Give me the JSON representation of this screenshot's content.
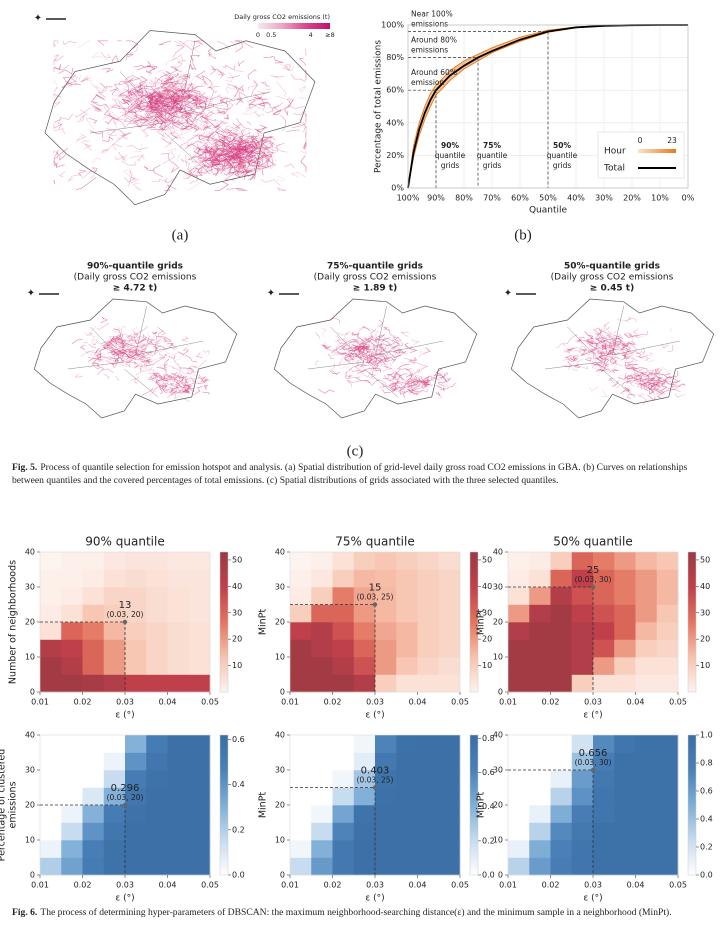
{
  "map_a": {
    "label": "(a)",
    "legend": {
      "title": "Daily gross CO2 emissions (t)",
      "ticks": [
        0,
        0.5,
        4,
        {
          "value": 8,
          "label": "≥8"
        }
      ],
      "colors": [
        "#f6e8ef",
        "#eba6c6",
        "#d8468a",
        "#c0116a"
      ]
    }
  },
  "maps_c": {
    "label": "(c)",
    "maps": [
      {
        "title": [
          "90%-quantile grids",
          "(Daily gross CO2 emissions",
          "≥ 4.72 t)"
        ]
      },
      {
        "title": [
          "75%-quantile grids",
          "(Daily gross CO2 emissions",
          "≥ 1.89 t)"
        ]
      },
      {
        "title": [
          "50%-quantile grids",
          "(Daily gross CO2 emissions",
          "≥ 0.45 t)"
        ]
      }
    ]
  },
  "caption_fig5": {
    "label": "Fig. 5.",
    "text": "Process of quantile selection for emission hotspot and analysis. (a) Spatial distribution of grid-level daily gross road CO2 emissions in GBA. (b) Curves on relationships between quantiles and the covered percentages of total emissions. (c) Spatial distributions of grids associated with the three selected quantiles."
  },
  "caption_fig6": {
    "label": "Fig. 6.",
    "text": "The process of determining hyper-parameters of DBSCAN: the maximum neighborhood-searching distance(ε) and the minimum sample in a neighborhood (MinPt)."
  },
  "chart_data": [
    {
      "type": "line",
      "panel_label": "(b)",
      "xlabel": "Quantile",
      "ylabel": "Percentage of total emissions",
      "grid": true,
      "xlim": [
        100,
        0
      ],
      "xticks": [
        {
          "value": 100,
          "label": "100%"
        },
        {
          "value": 90,
          "label": "90%"
        },
        {
          "value": 80,
          "label": "80%"
        },
        {
          "value": 70,
          "label": "70%"
        },
        {
          "value": 60,
          "label": "60%"
        },
        {
          "value": 50,
          "label": "50%"
        },
        {
          "value": 40,
          "label": "40%"
        },
        {
          "value": 30,
          "label": "30%"
        },
        {
          "value": 20,
          "label": "20%"
        },
        {
          "value": 10,
          "label": "10%"
        },
        {
          "value": 0,
          "label": "0%"
        }
      ],
      "ylim": [
        0,
        100
      ],
      "yticks": [
        {
          "value": 0,
          "label": "0%"
        },
        {
          "value": 20,
          "label": "20%"
        },
        {
          "value": 40,
          "label": "40%"
        },
        {
          "value": 60,
          "label": "60%"
        },
        {
          "value": 80,
          "label": "80%"
        },
        {
          "value": 100,
          "label": "100%"
        }
      ],
      "x": [
        100,
        98,
        96,
        94,
        92,
        90,
        85,
        80,
        75,
        70,
        60,
        50,
        40,
        30,
        20,
        10,
        0
      ],
      "series": [
        {
          "name": "Total",
          "color": "#000000",
          "values": [
            0,
            22,
            36,
            46,
            54,
            60,
            69,
            75,
            80,
            84,
            91,
            96,
            98.5,
            99.5,
            99.9,
            100,
            100
          ]
        }
      ],
      "band": {
        "name": "Hour",
        "range_labels": [
          0,
          23
        ],
        "colors": [
          "#fde3c6",
          "#e8781a"
        ],
        "lower": [
          0,
          19,
          32,
          42,
          50,
          57,
          66,
          73,
          78,
          83,
          90,
          95.5,
          98.3,
          99.4,
          99.9,
          100,
          100
        ],
        "upper": [
          0,
          26,
          40,
          50,
          58,
          63,
          72,
          78,
          82,
          86,
          92.5,
          96.8,
          98.8,
          99.7,
          100,
          100,
          100
        ]
      },
      "guides": [
        {
          "x": 90,
          "y": 60,
          "left_note": [
            "Around 60%",
            "emission"
          ],
          "bottom_note": [
            "90%",
            "quantile",
            "grids"
          ]
        },
        {
          "x": 75,
          "y": 80,
          "left_note": [
            "Around 80%",
            "emissions"
          ],
          "bottom_note": [
            "75%",
            "quantile",
            "grids"
          ]
        },
        {
          "x": 50,
          "y": 96,
          "left_note": [
            "Near 100%",
            "emissions"
          ],
          "bottom_note": [
            "50%",
            "quantile",
            "grids"
          ]
        }
      ]
    },
    {
      "type": "heatmap",
      "title": "90% quantile",
      "xlabel": "ε (°)",
      "ylabel": [
        "Number of neighborhoods"
      ],
      "xlim": [
        0.01,
        0.05
      ],
      "xticks": [
        0.01,
        0.02,
        0.03,
        0.04,
        0.05
      ],
      "ylim": [
        0,
        40
      ],
      "yticks": [
        0,
        10,
        20,
        30,
        40
      ],
      "colors": [
        "#fdf3ef",
        "#f7c2ad",
        "#e3735e",
        "#c0404a",
        "#9a3a44"
      ],
      "clim": [
        0,
        53
      ],
      "cticks": [
        10,
        20,
        30,
        40,
        50
      ],
      "point": {
        "x": 0.03,
        "y": 20,
        "value": 13,
        "label": "(0.03, 20)"
      },
      "z": [
        [
          50,
          50,
          48,
          45,
          40,
          40,
          40,
          40
        ],
        [
          50,
          45,
          30,
          20,
          12,
          8,
          6,
          5
        ],
        [
          45,
          40,
          30,
          20,
          12,
          8,
          6,
          5
        ],
        [
          5,
          30,
          25,
          15,
          10,
          8,
          6,
          5
        ],
        [
          2,
          5,
          12,
          10,
          8,
          6,
          5,
          4
        ],
        [
          1,
          2,
          5,
          8,
          8,
          6,
          5,
          4
        ],
        [
          1,
          1,
          2,
          5,
          6,
          5,
          4,
          4
        ],
        [
          0,
          1,
          1,
          3,
          4,
          4,
          3,
          3
        ]
      ]
    },
    {
      "type": "heatmap",
      "title": "75% quantile",
      "xlabel": "ε (°)",
      "ylabel": [
        "MinPt"
      ],
      "xlim": [
        0.01,
        0.05
      ],
      "xticks": [
        0.01,
        0.02,
        0.03,
        0.04,
        0.05
      ],
      "ylim": [
        0,
        40
      ],
      "yticks": [
        0,
        10,
        20,
        30,
        40
      ],
      "colors": [
        "#fdf3ef",
        "#f7c2ad",
        "#e3735e",
        "#c0404a",
        "#9a3a44"
      ],
      "clim": [
        0,
        53
      ],
      "cticks": [
        10,
        20,
        30,
        40,
        50
      ],
      "point": {
        "x": 0.03,
        "y": 25,
        "value": 15,
        "label": "(0.03, 25)"
      },
      "z": [
        [
          50,
          50,
          50,
          45,
          10,
          5,
          5,
          5
        ],
        [
          50,
          50,
          45,
          35,
          20,
          12,
          8,
          6
        ],
        [
          50,
          45,
          40,
          30,
          20,
          15,
          10,
          8
        ],
        [
          40,
          45,
          35,
          25,
          18,
          15,
          10,
          8
        ],
        [
          10,
          30,
          30,
          20,
          15,
          12,
          10,
          8
        ],
        [
          2,
          10,
          25,
          18,
          15,
          12,
          10,
          8
        ],
        [
          1,
          3,
          10,
          15,
          14,
          12,
          10,
          8
        ],
        [
          0,
          1,
          5,
          10,
          12,
          10,
          8,
          6
        ]
      ]
    },
    {
      "type": "heatmap",
      "title": "50% quantile",
      "xlabel": "ε (°)",
      "ylabel": [
        "MinPt"
      ],
      "xlim": [
        0.01,
        0.05
      ],
      "xticks": [
        0.01,
        0.02,
        0.03,
        0.04,
        0.05
      ],
      "ylim": [
        0,
        40
      ],
      "yticks": [
        0,
        10,
        20,
        30,
        40
      ],
      "colors": [
        "#fdf3ef",
        "#f7c2ad",
        "#e3735e",
        "#c0404a",
        "#9a3a44"
      ],
      "clim": [
        0,
        53
      ],
      "cticks": [
        10,
        20,
        30,
        40,
        50
      ],
      "point": {
        "x": 0.03,
        "y": 30,
        "value": 25,
        "label": "(0.03, 30)"
      },
      "z": [
        [
          50,
          50,
          50,
          10,
          5,
          5,
          3,
          3
        ],
        [
          50,
          50,
          50,
          45,
          20,
          10,
          5,
          5
        ],
        [
          50,
          50,
          50,
          45,
          35,
          20,
          10,
          8
        ],
        [
          45,
          50,
          50,
          45,
          40,
          30,
          15,
          10
        ],
        [
          20,
          45,
          50,
          40,
          35,
          30,
          20,
          12
        ],
        [
          5,
          20,
          45,
          35,
          30,
          25,
          20,
          15
        ],
        [
          2,
          5,
          30,
          40,
          30,
          25,
          20,
          15
        ],
        [
          1,
          2,
          10,
          30,
          25,
          20,
          15,
          12
        ]
      ]
    },
    {
      "type": "heatmap",
      "xlabel": "ε (°)",
      "ylabel": [
        "Percentage of clustered",
        "emissions"
      ],
      "xlim": [
        0.01,
        0.05
      ],
      "xticks": [
        0.01,
        0.02,
        0.03,
        0.04,
        0.05
      ],
      "ylim": [
        0,
        40
      ],
      "yticks": [
        0,
        10,
        20,
        30,
        40
      ],
      "colors": [
        "#ffffff",
        "#c6dbef",
        "#7eaed6",
        "#4a80b8",
        "#3a6ea5"
      ],
      "clim": [
        0,
        0.62
      ],
      "cticks": [
        {
          "value": 0,
          "label": "0.0"
        },
        0.2,
        0.4,
        0.6
      ],
      "point": {
        "x": 0.03,
        "y": 20,
        "value": 0.296,
        "label": "(0.03, 20)"
      },
      "z": [
        [
          0.2,
          0.35,
          0.5,
          0.58,
          0.6,
          0.6,
          0.6,
          0.6
        ],
        [
          0.05,
          0.3,
          0.48,
          0.58,
          0.6,
          0.6,
          0.6,
          0.6
        ],
        [
          0,
          0.15,
          0.4,
          0.55,
          0.6,
          0.6,
          0.6,
          0.6
        ],
        [
          0,
          0.05,
          0.3,
          0.5,
          0.58,
          0.6,
          0.6,
          0.6
        ],
        [
          0,
          0,
          0.1,
          0.3,
          0.55,
          0.6,
          0.6,
          0.6
        ],
        [
          0,
          0,
          0,
          0.15,
          0.5,
          0.58,
          0.6,
          0.6
        ],
        [
          0,
          0,
          0,
          0.05,
          0.4,
          0.55,
          0.6,
          0.6
        ],
        [
          0,
          0,
          0,
          0,
          0.3,
          0.5,
          0.6,
          0.6
        ]
      ]
    },
    {
      "type": "heatmap",
      "xlabel": "ε (°)",
      "ylabel": [
        "MinPt"
      ],
      "xlim": [
        0.01,
        0.05
      ],
      "xticks": [
        0.01,
        0.02,
        0.03,
        0.04,
        0.05
      ],
      "ylim": [
        0,
        40
      ],
      "yticks": [
        0,
        10,
        20,
        30,
        40
      ],
      "colors": [
        "#ffffff",
        "#c6dbef",
        "#7eaed6",
        "#4a80b8",
        "#3a6ea5"
      ],
      "clim": [
        0,
        0.82
      ],
      "cticks": [
        {
          "value": 0,
          "label": "0.0"
        },
        0.2,
        0.4,
        0.6,
        0.8
      ],
      "point": {
        "x": 0.03,
        "y": 25,
        "value": 0.403,
        "label": "(0.03, 25)"
      },
      "z": [
        [
          0.2,
          0.5,
          0.7,
          0.8,
          0.8,
          0.8,
          0.8,
          0.8
        ],
        [
          0.05,
          0.4,
          0.7,
          0.8,
          0.8,
          0.8,
          0.8,
          0.8
        ],
        [
          0,
          0.2,
          0.6,
          0.78,
          0.8,
          0.8,
          0.8,
          0.8
        ],
        [
          0,
          0.05,
          0.45,
          0.75,
          0.8,
          0.8,
          0.8,
          0.8
        ],
        [
          0,
          0,
          0.2,
          0.4,
          0.78,
          0.8,
          0.8,
          0.8
        ],
        [
          0,
          0,
          0.05,
          0.3,
          0.75,
          0.8,
          0.8,
          0.8
        ],
        [
          0,
          0,
          0,
          0.1,
          0.7,
          0.8,
          0.8,
          0.8
        ],
        [
          0,
          0,
          0,
          0.05,
          0.6,
          0.78,
          0.8,
          0.8
        ]
      ]
    },
    {
      "type": "heatmap",
      "xlabel": "ε (°)",
      "ylabel": [
        "MinPt"
      ],
      "xlim": [
        0.01,
        0.05
      ],
      "xticks": [
        0.01,
        0.02,
        0.03,
        0.04,
        0.05
      ],
      "ylim": [
        0,
        40
      ],
      "yticks": [
        0,
        10,
        20,
        30,
        40
      ],
      "colors": [
        "#ffffff",
        "#c6dbef",
        "#7eaed6",
        "#4a80b8",
        "#3a6ea5"
      ],
      "clim": [
        0,
        1
      ],
      "cticks": [
        {
          "value": 0,
          "label": "0.0"
        },
        0.2,
        0.4,
        0.6,
        0.8,
        {
          "value": 1,
          "label": "1.0"
        }
      ],
      "point": {
        "x": 0.03,
        "y": 30,
        "value": 0.656,
        "label": "(0.03, 30)"
      },
      "z": [
        [
          0.3,
          0.6,
          0.8,
          0.9,
          0.95,
          0.95,
          0.95,
          0.95
        ],
        [
          0.1,
          0.5,
          0.75,
          0.9,
          0.95,
          0.95,
          0.95,
          0.95
        ],
        [
          0,
          0.3,
          0.7,
          0.85,
          0.95,
          0.95,
          0.95,
          0.95
        ],
        [
          0,
          0.1,
          0.5,
          0.8,
          0.9,
          0.95,
          0.95,
          0.95
        ],
        [
          0,
          0,
          0.3,
          0.65,
          0.9,
          0.95,
          0.95,
          0.95
        ],
        [
          0,
          0,
          0.1,
          0.6,
          0.85,
          0.95,
          0.95,
          0.95
        ],
        [
          0,
          0,
          0,
          0.4,
          0.8,
          0.95,
          0.95,
          0.95
        ],
        [
          0,
          0,
          0,
          0.2,
          0.7,
          0.9,
          0.95,
          0.95
        ]
      ]
    }
  ]
}
